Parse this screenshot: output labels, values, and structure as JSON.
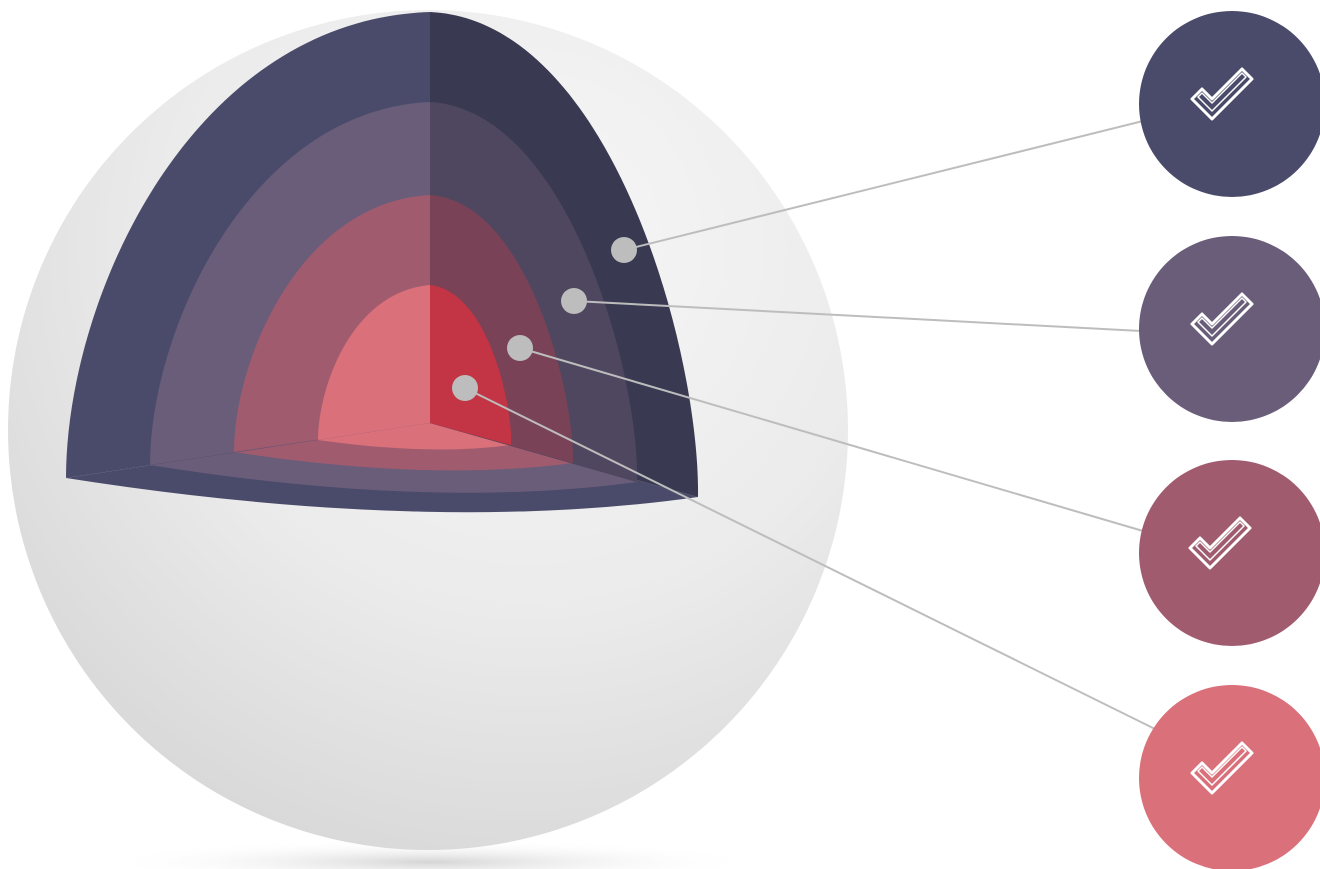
{
  "diagram": {
    "type": "sphere-cutaway-layers",
    "layer_count": 4,
    "layers": [
      {
        "name": "outer-layer",
        "icon": "check-icon",
        "color_front": "#4a4b6a",
        "color_side": "#393a52"
      },
      {
        "name": "second-layer",
        "icon": "check-icon",
        "color_front": "#6a5d79",
        "color_side": "#4f4760"
      },
      {
        "name": "third-layer",
        "icon": "check-icon",
        "color_front": "#a15b6f",
        "color_side": "#7a4256"
      },
      {
        "name": "core-layer",
        "icon": "check-icon",
        "color_front": "#da707a",
        "color_side": "#c33444"
      }
    ],
    "connector_color": "#bdbdbd",
    "sphere_color": "#e9e9e9"
  }
}
